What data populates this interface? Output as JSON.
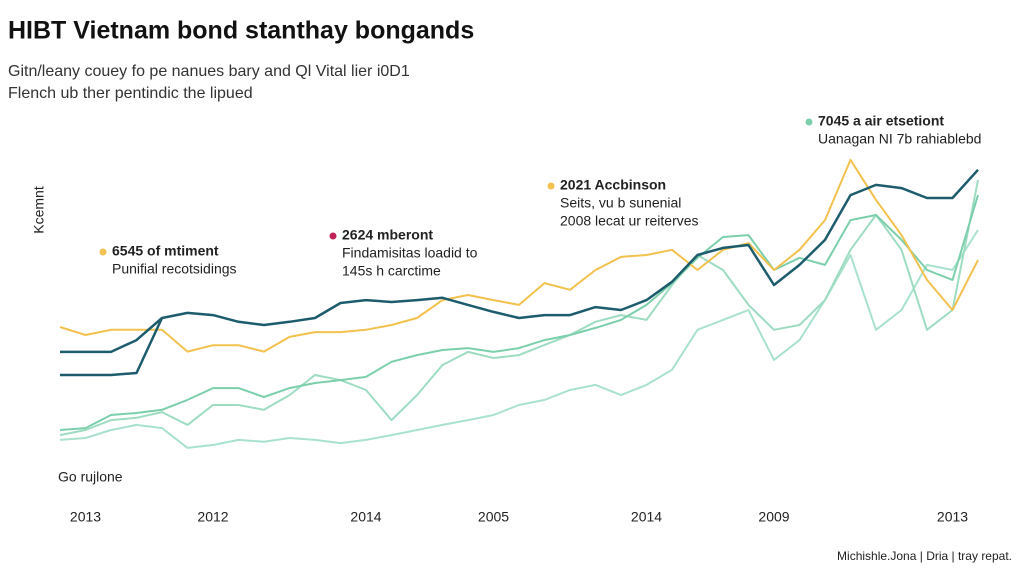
{
  "chart_data": {
    "type": "line",
    "title": "HIBT Vietnam bond stanthay bongands",
    "subtitle": [
      "Gitn/leany couey fo pe nanues bary and Ql Vital lier i0D1",
      "Flench ub ther pentindic the lipued"
    ],
    "y_label": "Kcemnt",
    "footer": "Go rujlone",
    "source": "Michishle.Jona | Dria | tray repat.",
    "categories": [
      null,
      "2013",
      null,
      null,
      null,
      null,
      "2012",
      null,
      null,
      null,
      null,
      null,
      "2014",
      null,
      null,
      null,
      null,
      "2005",
      null,
      null,
      null,
      null,
      null,
      "2014",
      null,
      null,
      null,
      null,
      "2009",
      null,
      null,
      null,
      null,
      null,
      null,
      "2013",
      null
    ],
    "ylim": [
      0,
      100
    ],
    "series": [
      {
        "color": "#a9e2cc",
        "width": 2,
        "values": [
          9.4,
          10,
          12.5,
          14.1,
          13.1,
          6.9,
          7.8,
          9.4,
          8.8,
          10,
          9.4,
          8.4,
          9.4,
          10.9,
          12.5,
          14.1,
          15.6,
          17.2,
          20.3,
          21.9,
          25,
          26.6,
          23.4,
          26.6,
          31.3,
          43.8,
          46.9,
          50,
          34.4,
          40.6,
          53.1,
          67.2,
          43.8,
          50,
          64.1,
          62.5,
          75
        ]
      },
      {
        "color": "#9edcc2",
        "width": 2,
        "values": [
          10.9,
          12.5,
          15.6,
          16.3,
          18.1,
          14.1,
          20.3,
          20.3,
          18.8,
          23.4,
          29.7,
          28.1,
          25,
          15.6,
          23.4,
          32.8,
          36.9,
          35,
          35.9,
          39.1,
          42.2,
          46.3,
          48.4,
          46.9,
          57.8,
          67.2,
          62.5,
          51.6,
          43.8,
          45.3,
          53.1,
          68.8,
          79.7,
          68.8,
          43.8,
          50,
          90.6
        ]
      },
      {
        "color": "#7ccfab",
        "width": 2,
        "values": [
          12.5,
          13.1,
          17.2,
          17.8,
          18.8,
          21.9,
          25.6,
          25.6,
          22.8,
          25.6,
          27.2,
          28.1,
          29.1,
          33.8,
          35.9,
          37.5,
          38.1,
          36.9,
          38.1,
          40.6,
          42.2,
          44.4,
          46.9,
          51.6,
          58.4,
          66.3,
          72.8,
          73.4,
          62.5,
          66.3,
          64.1,
          78.1,
          79.7,
          71.9,
          62.5,
          59.4,
          85.9
        ]
      },
      {
        "color": "#f2c14e",
        "width": 2,
        "values": [
          44.7,
          42.2,
          43.8,
          43.8,
          43.8,
          37,
          39,
          39,
          37,
          41.6,
          43.1,
          43.1,
          43.8,
          45.3,
          47.5,
          53.1,
          54.7,
          53.1,
          51.6,
          58.4,
          56.3,
          62.5,
          66.6,
          67.2,
          68.8,
          62.5,
          68.8,
          70.9,
          62.5,
          68.8,
          78.1,
          96.9,
          84.4,
          73.4,
          59.4,
          50,
          65.6
        ]
      },
      {
        "color": "#1c5c6c",
        "width": 2.5,
        "values": [
          29.7,
          29.7,
          29.7,
          30.3,
          47.5,
          null,
          null,
          null,
          null,
          null,
          null,
          null,
          null,
          null,
          null,
          null,
          null,
          null,
          null,
          null,
          null,
          null,
          null,
          null,
          null,
          null,
          null,
          null,
          null,
          null,
          null,
          null,
          null,
          null,
          null,
          null,
          null
        ]
      },
      {
        "color": "#1c5c6c",
        "width": 2.5,
        "values": [
          36.9,
          36.9,
          36.9,
          40.6,
          47.5,
          49.1,
          48.4,
          46.3,
          45.3,
          46.3,
          47.5,
          52.2,
          53.1,
          52.5,
          53.1,
          53.8,
          51.6,
          49.4,
          47.5,
          48.4,
          48.4,
          50.9,
          50,
          53.1,
          58.8,
          67.2,
          69.4,
          70.3,
          57.8,
          64.1,
          71.9,
          85.9,
          89.1,
          88.1,
          85,
          85,
          93.8
        ]
      }
    ],
    "annotations": [
      {
        "title": "6545 of mtiment",
        "lines": [
          "Punifial recotsidings"
        ],
        "color": "#f2c14e"
      },
      {
        "title": "2624 mberont",
        "lines": [
          "Findamisitas loadid to",
          "145s h carctime"
        ],
        "color": "#c0245a"
      },
      {
        "title": "2021 Accbinson",
        "lines": [
          "Seits, vu b sunenial",
          "2008 lecat ur reiterves"
        ],
        "color": "#f2c14e"
      },
      {
        "title": "7045 a air etsetiont",
        "lines": [
          "Uanagan NI 7b rahiablebd"
        ],
        "color": "#7ccfab"
      }
    ]
  }
}
